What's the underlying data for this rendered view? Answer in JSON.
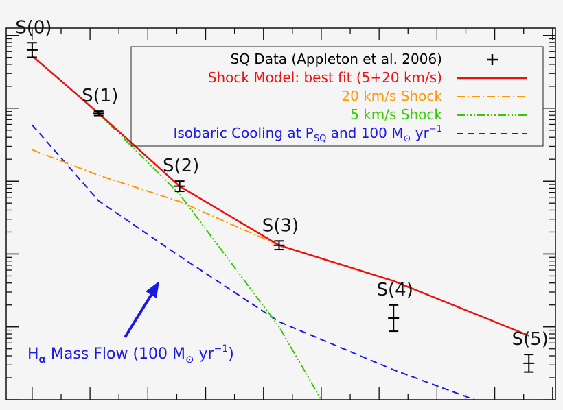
{
  "chart_data": {
    "type": "line",
    "title": "",
    "xlabel": "",
    "ylabel": "",
    "x_scale": "linear",
    "y_scale": "log",
    "grid": false,
    "legend_position": "top-right",
    "states": [
      "S(0)",
      "S(1)",
      "S(2)",
      "S(3)",
      "S(4)",
      "S(5)"
    ],
    "legend": {
      "data": "SQ Data (Appleton et al. 2006)",
      "best_fit": "Shock Model: best fit (5+20 km/s)",
      "shock20": "20 km/s Shock",
      "shock5": "5 km/s Shock",
      "isobaric_prefix": "Isobaric Cooling at P",
      "isobaric_sub": "SQ",
      "isobaric_mid": " and 100 M",
      "isobaric_sun": "⊙",
      "isobaric_unit": " yr",
      "isobaric_sup": "−1"
    },
    "annotation": {
      "prefix": "H",
      "sub": "α",
      "mid": " Mass Flow (100 M",
      "sun": "⊙",
      "unit": " yr",
      "sup": "−1",
      "close": ")"
    },
    "colors": {
      "data": "#000000",
      "best_fit": "#ee1111",
      "shock20": "#ff9900",
      "shock5": "#33cc00",
      "isobaric": "#1a1ae6",
      "annotation": "#1a1ae6"
    },
    "xlim": [
      0,
      9.5
    ],
    "ylog_range": [
      0,
      5.1
    ],
    "series": [
      {
        "name": "SQ Data (Appleton et al. 2006)",
        "kind": "data",
        "points": [
          {
            "x": 0.45,
            "y": 4.8,
            "err": 0.1
          },
          {
            "x": 1.6,
            "y": 3.93,
            "err": 0.03
          },
          {
            "x": 3.0,
            "y": 2.93,
            "err": 0.07
          },
          {
            "x": 4.72,
            "y": 2.12,
            "err": 0.06
          },
          {
            "x": 6.7,
            "y": 1.12,
            "err": 0.18
          },
          {
            "x": 9.04,
            "y": 0.5,
            "err": 0.12
          }
        ]
      },
      {
        "name": "Shock Model: best fit (5+20 km/s)",
        "kind": "best_fit",
        "x": [
          0.45,
          1.6,
          3.0,
          4.72,
          6.7,
          9.04
        ],
        "y": [
          4.72,
          3.93,
          2.93,
          2.12,
          1.63,
          0.88
        ]
      },
      {
        "name": "20 km/s Shock",
        "kind": "shock20",
        "x": [
          0.45,
          1.6,
          3.0,
          4.72,
          6.7,
          9.04
        ],
        "y": [
          3.43,
          3.08,
          2.72,
          2.12,
          1.63,
          0.88
        ]
      },
      {
        "name": "5 km/s Shock",
        "kind": "shock5",
        "x": [
          0.45,
          1.6,
          3.0,
          4.72,
          5.45
        ],
        "y": [
          4.72,
          3.93,
          2.82,
          1.0,
          0.0
        ]
      },
      {
        "name": "Isobaric Cooling at PSQ and 100 M⊙ yr−1",
        "kind": "isobaric",
        "x": [
          0.45,
          1.6,
          3.0,
          4.72,
          6.7,
          8.1
        ],
        "y": [
          3.77,
          2.73,
          1.97,
          1.07,
          0.41,
          0.0
        ]
      }
    ]
  }
}
